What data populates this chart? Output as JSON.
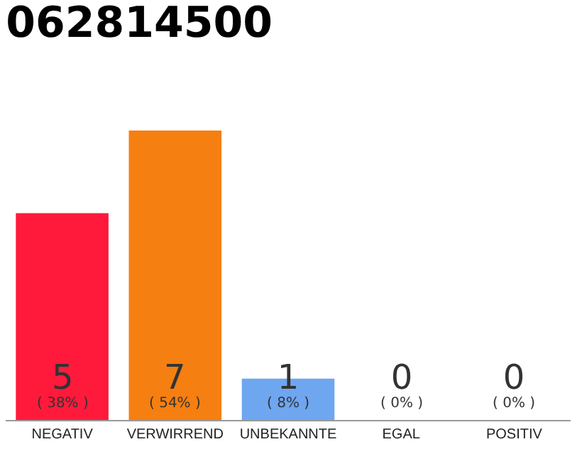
{
  "chart_data": {
    "type": "bar",
    "title": "062814500",
    "categories": [
      "NEGATIV",
      "VERWIRREND",
      "UNBEKANNTE",
      "EGAL",
      "POSITIV"
    ],
    "values": [
      5,
      7,
      1,
      0,
      0
    ],
    "colors": [
      "#ff1a3c",
      "#f57f10",
      "#6ea6f0",
      "#dddddd",
      "#dddddd"
    ],
    "value_labels": [
      "5\n( 38% )",
      "7\n( 54% )",
      "1\n( 8% )",
      "0\n( 0% )",
      "0\n( 0% )"
    ],
    "grid": false
  }
}
